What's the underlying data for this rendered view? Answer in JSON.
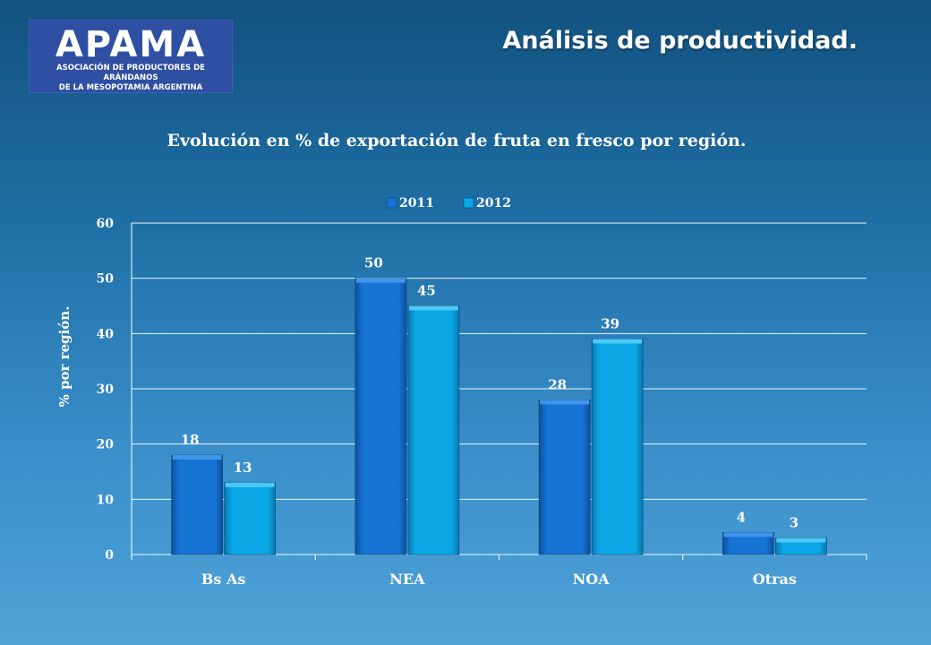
{
  "logo": {
    "name": "APAMA",
    "subtitle": "ASOCIACIÓN DE PRODUCTORES DE ARÁNDANOS\nDE LA MESOPOTAMIA ARGENTINA"
  },
  "header": {
    "title": "Análisis de productividad."
  },
  "colors": {
    "series_2011": "#1574d4",
    "series_2012": "#0aa8e6",
    "grid": "#ffffff"
  },
  "chart_data": {
    "type": "bar",
    "title": "Evolución en % de exportación de fruta en fresco por región.",
    "xlabel": "",
    "ylabel": "% por región.",
    "categories": [
      "Bs As",
      "NEA",
      "NOA",
      "Otras"
    ],
    "series": [
      {
        "name": "2011",
        "values": [
          18,
          50,
          28,
          4
        ]
      },
      {
        "name": "2012",
        "values": [
          13,
          45,
          39,
          3
        ]
      }
    ],
    "ylim": [
      0,
      60
    ],
    "yticks": [
      0,
      10,
      20,
      30,
      40,
      50,
      60
    ],
    "grid": true,
    "legend_position": "top"
  }
}
